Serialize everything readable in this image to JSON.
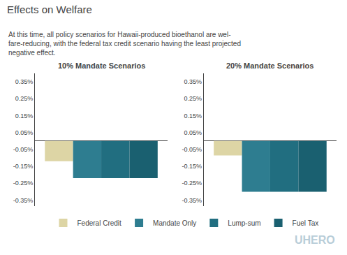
{
  "title": "Effects on Welfare",
  "subtitle": [
    "At this time, all policy scenarios for Hawaii-produced bioethanol are wel-",
    "fare-reducing, with the federal tax credit scenario having the least projected",
    "negative effect."
  ],
  "annotations": [
    {
      "text": "UHERO",
      "color": "#b8cdd8"
    }
  ],
  "legend": "bottom",
  "chart_data": [
    {
      "type": "bar",
      "title": "10% Mandate Scenarios",
      "categories": [
        null
      ],
      "series": [
        {
          "name": "Federal Credit",
          "color": "#ddd5a5",
          "values": [
            -0.12
          ]
        },
        {
          "name": "Mandate Only",
          "color": "#2e7d90",
          "values": [
            -0.22
          ]
        },
        {
          "name": "Lump-sum",
          "color": "#216e80",
          "values": [
            -0.22
          ]
        },
        {
          "name": "Fuel Tax",
          "color": "#1a6070",
          "values": [
            -0.22
          ]
        }
      ],
      "ylim": [
        -0.385,
        0.4
      ],
      "yticks": [
        {
          "value": -0.35,
          "label": "-0.35%"
        },
        {
          "value": -0.25,
          "label": "-0.25%"
        },
        {
          "value": -0.15,
          "label": "-0.15%"
        },
        {
          "value": -0.05,
          "label": "-0.05%"
        },
        {
          "value": 0.05,
          "label": "0.05%"
        },
        {
          "value": 0.15,
          "label": "0.15%"
        },
        {
          "value": 0.25,
          "label": "0.25%"
        },
        {
          "value": 0.35,
          "label": "0.35%"
        }
      ],
      "grid": false,
      "tick_labels": "y"
    },
    {
      "type": "bar",
      "title": "20% Mandate Scenarios",
      "categories": [
        null
      ],
      "series": [
        {
          "name": "Federal Credit",
          "color": "#ddd5a5",
          "values": [
            -0.085
          ]
        },
        {
          "name": "Mandate Only",
          "color": "#2e7d90",
          "values": [
            -0.3
          ]
        },
        {
          "name": "Lump-sum",
          "color": "#216e80",
          "values": [
            -0.3
          ]
        },
        {
          "name": "Fuel Tax",
          "color": "#1a6070",
          "values": [
            -0.3
          ]
        }
      ],
      "ylim": [
        -0.385,
        0.4
      ],
      "yticks": [
        {
          "value": -0.35,
          "label": "-0.35%"
        },
        {
          "value": -0.25,
          "label": "-0.25%"
        },
        {
          "value": -0.15,
          "label": "-0.15%"
        },
        {
          "value": -0.05,
          "label": "-0.05%"
        },
        {
          "value": 0.05,
          "label": "0.05%"
        },
        {
          "value": 0.15,
          "label": "0.15%"
        },
        {
          "value": 0.25,
          "label": "0.25%"
        },
        {
          "value": 0.35,
          "label": "0.35%"
        }
      ],
      "grid": false,
      "tick_labels": "y"
    }
  ]
}
